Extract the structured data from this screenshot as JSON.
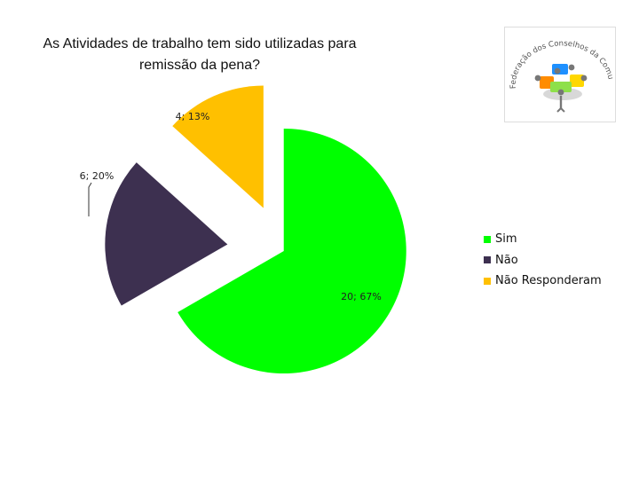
{
  "chart_data": {
    "type": "pie",
    "title": "As Atividades de trabalho tem sido utilizadas para remissão da pena?",
    "slices": [
      {
        "name": "Sim",
        "value": 20,
        "percent": 67,
        "label": "20; 67%",
        "color": "#00ff00"
      },
      {
        "name": "Não",
        "value": 6,
        "percent": 20,
        "label": "6; 20%",
        "color": "#3d3050"
      },
      {
        "name": "Não Responderam",
        "value": 4,
        "percent": 13,
        "label": "4; 13%",
        "color": "#ffc000"
      }
    ],
    "legend_position": "right",
    "exploded": true
  },
  "logo": {
    "text": "Federação dos Conselhos da Comunidade do Paraná",
    "colors": [
      "#1e90ff",
      "#ff8c00",
      "#ffd700",
      "#32cd32",
      "#e0e0e0",
      "#666666"
    ]
  }
}
